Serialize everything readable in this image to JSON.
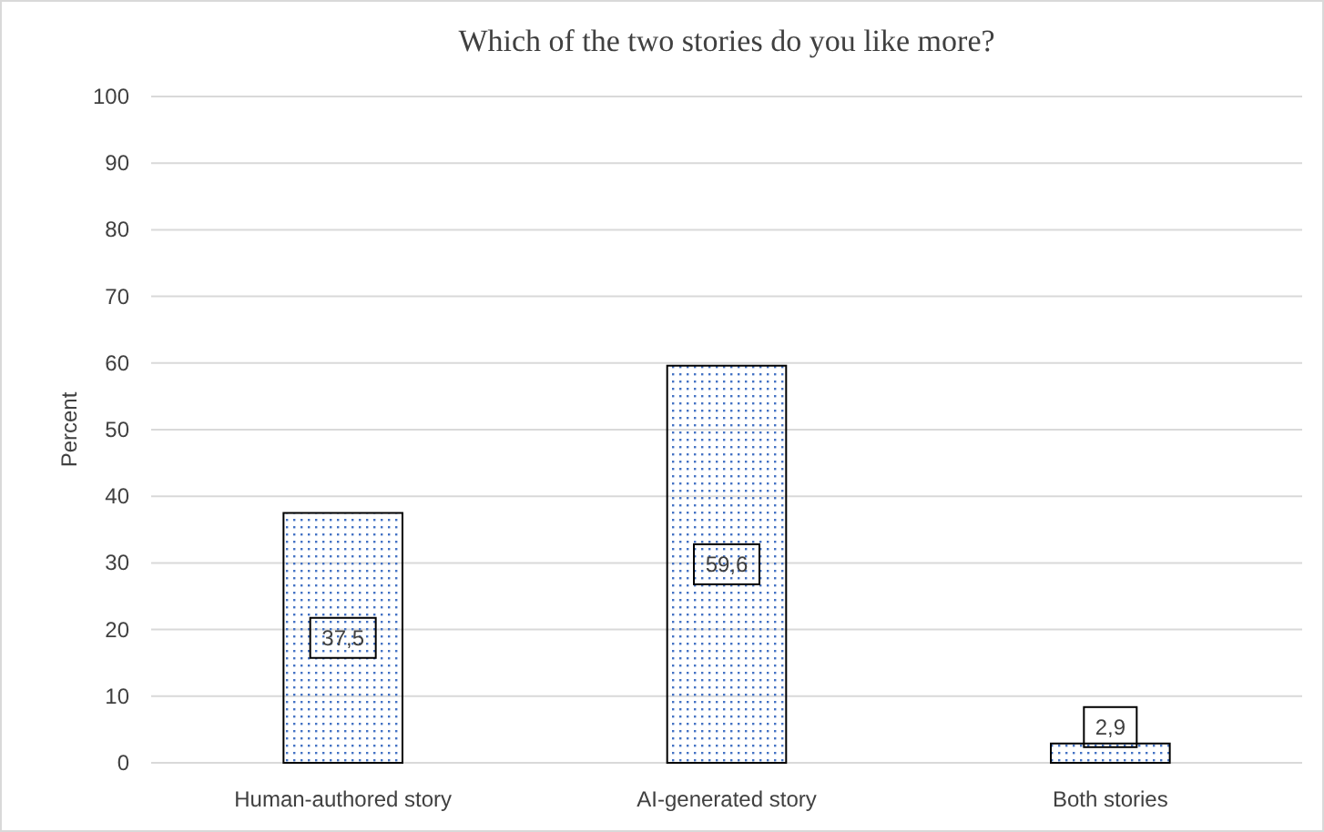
{
  "chart_data": {
    "type": "bar",
    "title": "Which of the two stories do you like more?",
    "ylabel": "Percent",
    "categories": [
      "Human-authored story",
      "AI-generated story",
      "Both stories"
    ],
    "values": [
      37.5,
      59.6,
      2.9
    ],
    "value_labels": [
      "37,5",
      "59,6",
      "2,9"
    ],
    "color": "#4472c4",
    "ylim": [
      0,
      100
    ],
    "yticks": [
      0,
      10,
      20,
      30,
      40,
      50,
      60,
      70,
      80,
      90,
      100
    ],
    "grid": "y"
  }
}
